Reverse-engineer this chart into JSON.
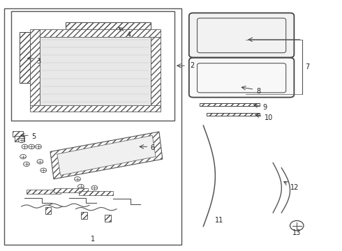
{
  "bg_color": "#ffffff",
  "line_color": "#333333",
  "label_color": "#222222",
  "lc": "#444444"
}
